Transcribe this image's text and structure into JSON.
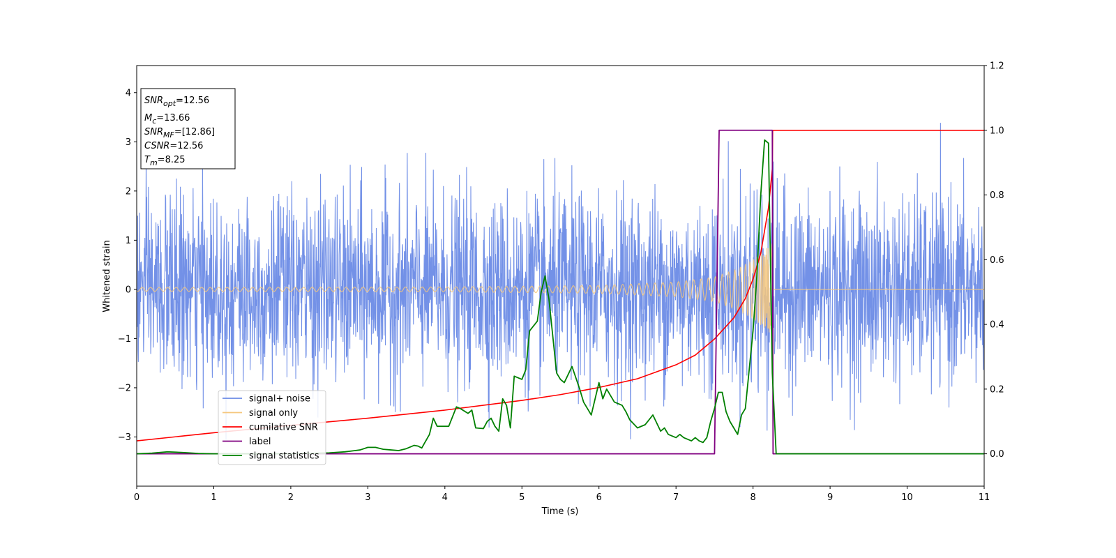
{
  "chart_data": {
    "type": "line",
    "xlabel": "Time (s)",
    "ylabel": "Whitened strain",
    "ylabel_right": "",
    "xlim": [
      0,
      11
    ],
    "ylim_left": [
      -4,
      4.55
    ],
    "ylim_right": [
      -0.1,
      1.2
    ],
    "xticks": [
      0,
      1,
      2,
      3,
      4,
      5,
      6,
      7,
      8,
      9,
      10,
      11
    ],
    "yticks_left": [
      -3,
      -2,
      -1,
      0,
      1,
      2,
      3,
      4
    ],
    "yticks_right": [
      0.0,
      0.2,
      0.4,
      0.6,
      0.8,
      1.0,
      1.2
    ],
    "ytick_labels_right": [
      "0.0",
      "0.2",
      "0.4",
      "0.6",
      "0.8",
      "1.0",
      "1.2"
    ],
    "grid": false,
    "legend_position": "lower-left",
    "info_box": {
      "lines": [
        {
          "base": "SNR",
          "sub": "opt",
          "value": "=12.56"
        },
        {
          "base": "M",
          "sub": "c",
          "value": "=13.66"
        },
        {
          "base": "SNR",
          "sub": "MF",
          "value": "=[12.86]"
        },
        {
          "base": "CSNR",
          "sub": "",
          "value": "=12.56"
        },
        {
          "base": "T",
          "sub": "m",
          "value": "=8.25"
        }
      ]
    },
    "series": [
      {
        "name": "signal+ noise",
        "axis": "left",
        "color": "#6b8be6",
        "kind": "noise",
        "approx_std": 0.95,
        "approx_range": [
          -3.65,
          3.57
        ],
        "x_range": [
          0,
          11
        ]
      },
      {
        "name": "signal only",
        "axis": "left",
        "color": "#f5c77e",
        "kind": "chirp",
        "t_merge": 8.25,
        "envelope": [
          [
            0,
            0.04
          ],
          [
            4,
            0.05
          ],
          [
            6,
            0.08
          ],
          [
            7,
            0.15
          ],
          [
            7.5,
            0.25
          ],
          [
            7.8,
            0.42
          ],
          [
            8.0,
            0.6
          ],
          [
            8.15,
            0.8
          ],
          [
            8.25,
            0.95
          ]
        ]
      },
      {
        "name": "cumilative SNR",
        "axis": "right",
        "color": "#ff0000",
        "x": [
          0,
          1,
          2,
          3,
          4,
          5,
          5.5,
          6,
          6.5,
          7,
          7.25,
          7.5,
          7.75,
          7.9,
          8.0,
          8.1,
          8.2,
          8.25,
          8.255,
          11
        ],
        "y": [
          0.04,
          0.065,
          0.088,
          0.11,
          0.135,
          0.165,
          0.183,
          0.205,
          0.232,
          0.275,
          0.305,
          0.355,
          0.42,
          0.48,
          0.54,
          0.62,
          0.76,
          0.88,
          1.0,
          1.0
        ]
      },
      {
        "name": "label",
        "axis": "right",
        "color": "#800080",
        "x": [
          0,
          7.5,
          7.56,
          8.25,
          8.26,
          11
        ],
        "y": [
          0,
          0,
          1,
          1,
          0,
          0
        ]
      },
      {
        "name": "signal statistics",
        "axis": "right",
        "color": "#008000",
        "x": [
          0,
          0.2,
          0.4,
          0.6,
          0.8,
          1.0,
          1.5,
          2.0,
          2.5,
          2.7,
          2.9,
          3.0,
          3.1,
          3.2,
          3.3,
          3.4,
          3.5,
          3.6,
          3.65,
          3.7,
          3.8,
          3.85,
          3.9,
          4.0,
          4.05,
          4.15,
          4.2,
          4.3,
          4.35,
          4.4,
          4.5,
          4.55,
          4.6,
          4.65,
          4.7,
          4.75,
          4.8,
          4.85,
          4.9,
          5.0,
          5.05,
          5.1,
          5.2,
          5.25,
          5.3,
          5.35,
          5.45,
          5.5,
          5.55,
          5.65,
          5.75,
          5.8,
          5.9,
          6.0,
          6.05,
          6.1,
          6.2,
          6.3,
          6.35,
          6.4,
          6.5,
          6.6,
          6.7,
          6.8,
          6.85,
          6.9,
          7.0,
          7.05,
          7.1,
          7.2,
          7.25,
          7.3,
          7.35,
          7.4,
          7.45,
          7.5,
          7.55,
          7.6,
          7.65,
          7.7,
          7.75,
          7.8,
          7.85,
          7.9,
          8.0,
          8.05,
          8.1,
          8.15,
          8.2,
          8.25,
          8.3,
          11
        ],
        "y": [
          0.0,
          0.002,
          0.006,
          0.004,
          0.001,
          0.0,
          0.0,
          0.0,
          0.003,
          0.006,
          0.012,
          0.02,
          0.02,
          0.014,
          0.012,
          0.01,
          0.016,
          0.026,
          0.024,
          0.018,
          0.06,
          0.11,
          0.085,
          0.085,
          0.085,
          0.145,
          0.14,
          0.125,
          0.135,
          0.08,
          0.078,
          0.1,
          0.11,
          0.085,
          0.07,
          0.17,
          0.15,
          0.08,
          0.24,
          0.23,
          0.26,
          0.38,
          0.41,
          0.5,
          0.55,
          0.48,
          0.25,
          0.23,
          0.22,
          0.27,
          0.2,
          0.16,
          0.12,
          0.22,
          0.17,
          0.2,
          0.16,
          0.15,
          0.13,
          0.105,
          0.08,
          0.09,
          0.12,
          0.07,
          0.08,
          0.06,
          0.05,
          0.06,
          0.05,
          0.04,
          0.05,
          0.04,
          0.035,
          0.05,
          0.1,
          0.14,
          0.19,
          0.19,
          0.13,
          0.1,
          0.08,
          0.06,
          0.12,
          0.14,
          0.38,
          0.55,
          0.8,
          0.97,
          0.96,
          0.25,
          0.0,
          0.0
        ]
      }
    ]
  }
}
